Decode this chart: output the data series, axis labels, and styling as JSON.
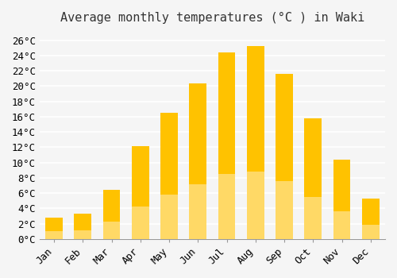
{
  "title": "Average monthly temperatures (°C ) in Waki",
  "months": [
    "Jan",
    "Feb",
    "Mar",
    "Apr",
    "May",
    "Jun",
    "Jul",
    "Aug",
    "Sep",
    "Oct",
    "Nov",
    "Dec"
  ],
  "values": [
    2.8,
    3.3,
    6.4,
    12.1,
    16.5,
    20.3,
    24.4,
    25.2,
    21.6,
    15.8,
    10.4,
    5.3
  ],
  "bar_color_top": "#FFC200",
  "bar_color_bottom": "#FFD966",
  "background_color": "#f5f5f5",
  "grid_color": "#ffffff",
  "ylim": [
    0,
    27
  ],
  "yticks": [
    0,
    2,
    4,
    6,
    8,
    10,
    12,
    14,
    16,
    18,
    20,
    22,
    24,
    26
  ],
  "ylabel_format": "°C",
  "title_fontsize": 11,
  "tick_fontsize": 9,
  "bar_width": 0.6
}
